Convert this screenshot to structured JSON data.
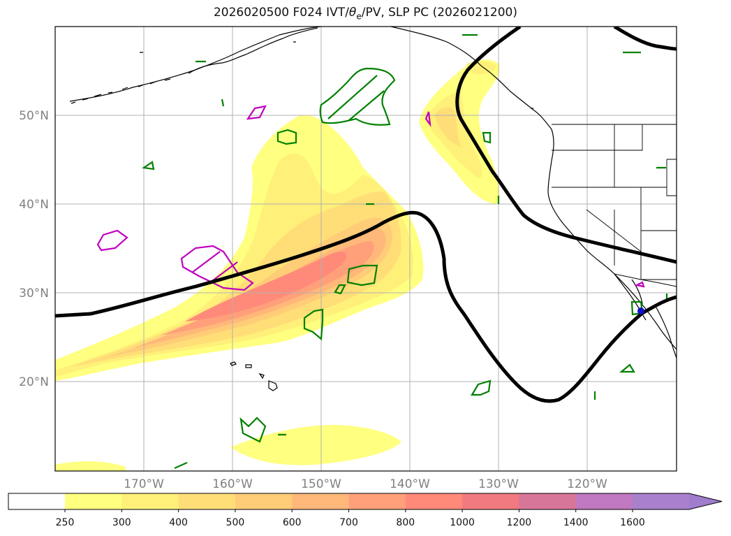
{
  "title": {
    "prefix": "2026020500 F024 IVT/",
    "theta": "θ",
    "theta_sub": "e",
    "suffix": "/PV, SLP PC (2026021200)"
  },
  "map": {
    "lat_labels": [
      "50°N",
      "40°N",
      "30°N",
      "20°N"
    ],
    "lon_labels": [
      "170°W",
      "160°W",
      "150°W",
      "140°W",
      "130°W",
      "120°W"
    ],
    "colors": {
      "slp_contour": "#000000",
      "pv_green": "#008000",
      "pv_magenta": "#c000c0",
      "marker": "#1010cc"
    }
  },
  "colorbar": {
    "levels": [
      "250",
      "300",
      "400",
      "500",
      "600",
      "700",
      "800",
      "1000",
      "1200",
      "1400",
      "1600"
    ],
    "colors": [
      "#ffff80",
      "#fff07a",
      "#ffde78",
      "#ffcc78",
      "#ffb87a",
      "#ffa07a",
      "#ff8a7a",
      "#f07a80",
      "#d8769a",
      "#c078c0",
      "#a880cc",
      "#a07ccc"
    ]
  }
}
